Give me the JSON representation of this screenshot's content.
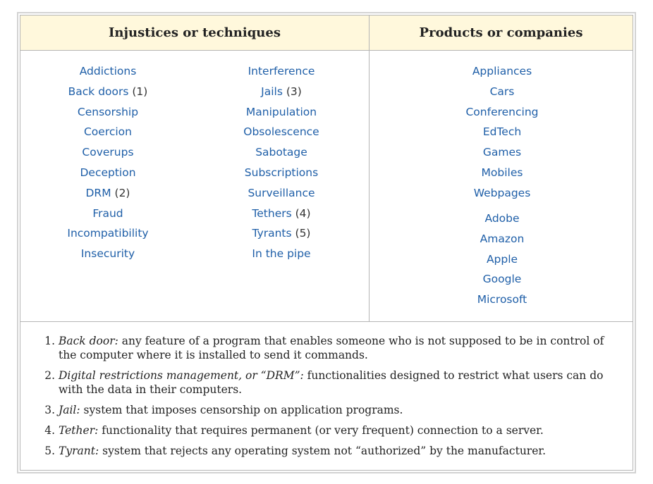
{
  "headers": {
    "left": "Injustices or techniques",
    "right": "Products or companies"
  },
  "injustices_col1": [
    {
      "label": "Addictions",
      "count": ""
    },
    {
      "label": "Back doors",
      "count": " (1)"
    },
    {
      "label": "Censorship",
      "count": ""
    },
    {
      "label": "Coercion",
      "count": ""
    },
    {
      "label": "Coverups",
      "count": ""
    },
    {
      "label": "Deception",
      "count": ""
    },
    {
      "label": "DRM",
      "count": " (2)"
    },
    {
      "label": "Fraud",
      "count": ""
    },
    {
      "label": "Incompatibility",
      "count": ""
    },
    {
      "label": "Insecurity",
      "count": ""
    }
  ],
  "injustices_col2": [
    {
      "label": "Interference",
      "count": ""
    },
    {
      "label": "Jails",
      "count": " (3)"
    },
    {
      "label": "Manipulation",
      "count": ""
    },
    {
      "label": "Obsolescence",
      "count": ""
    },
    {
      "label": "Sabotage",
      "count": ""
    },
    {
      "label": "Subscriptions",
      "count": ""
    },
    {
      "label": "Surveillance",
      "count": ""
    },
    {
      "label": "Tethers",
      "count": " (4)"
    },
    {
      "label": "Tyrants",
      "count": " (5)"
    },
    {
      "label": "In the pipe",
      "count": ""
    }
  ],
  "products": [
    "Appliances",
    "Cars",
    "Conferencing",
    "EdTech",
    "Games",
    "Mobiles",
    "Webpages"
  ],
  "companies": [
    "Adobe",
    "Amazon",
    "Apple",
    "Google",
    "Microsoft"
  ],
  "notes": [
    {
      "term": "Back door:",
      "text": " any feature of a program that enables someone who is not supposed to be in control of the computer where it is installed to send it commands."
    },
    {
      "term": "Digital restrictions management, or “DRM”:",
      "text": " functionalities designed to restrict what users can do with the data in their computers."
    },
    {
      "term": "Jail:",
      "text": " system that imposes censorship on application programs."
    },
    {
      "term": "Tether:",
      "text": " functionality that requires permanent (or very frequent) connection to a server."
    },
    {
      "term": "Tyrant:",
      "text": " system that rejects any operating system not “authorized” by the manufacturer."
    }
  ]
}
